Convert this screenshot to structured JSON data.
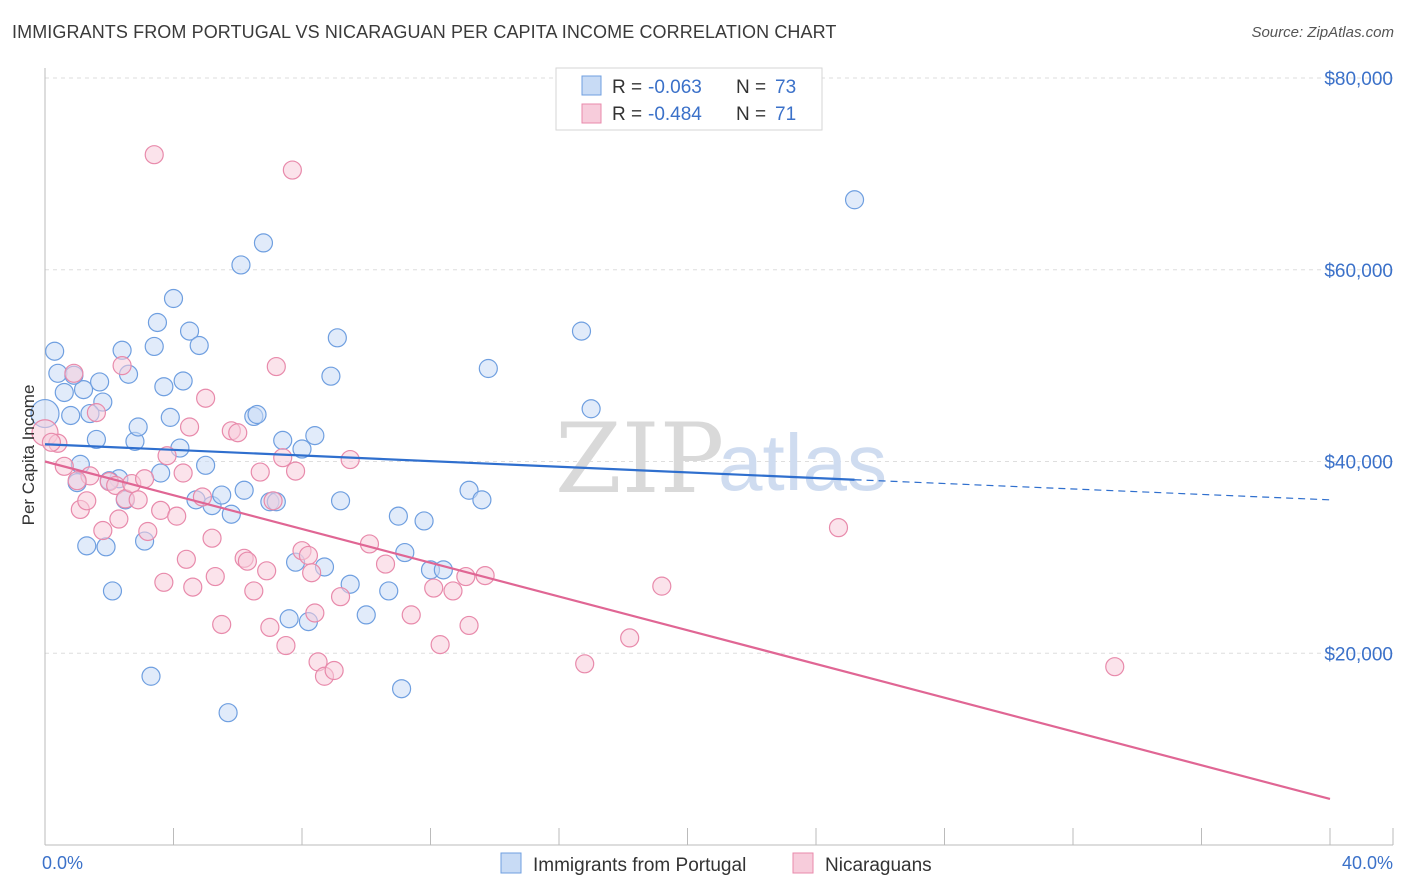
{
  "title": "IMMIGRANTS FROM PORTUGAL VS NICARAGUAN PER CAPITA INCOME CORRELATION CHART",
  "source": "Source: ZipAtlas.com",
  "watermark": {
    "zip": "ZIP",
    "atlas": "atlas"
  },
  "colors": {
    "blue": "#6f9fe0",
    "blue_fill": "#c8dbf5",
    "blue_line": "#2f6fce",
    "pink": "#e88aab",
    "pink_fill": "#f7ccdb",
    "pink_line": "#e06694",
    "accent_text": "#3b71c9"
  },
  "legend": {
    "rows": [
      {
        "r_label": "R = ",
        "r_value": "-0.063",
        "n_label": "N = ",
        "n_value": "73"
      },
      {
        "r_label": "R = ",
        "r_value": "-0.484",
        "n_label": "N = ",
        "n_value": "71"
      }
    ]
  },
  "chart_data": {
    "type": "scatter",
    "title": "IMMIGRANTS FROM PORTUGAL VS NICARAGUAN PER CAPITA INCOME CORRELATION CHART",
    "xlabel": "",
    "ylabel": "Per Capita Income",
    "xlim": [
      0,
      40
    ],
    "ylim": [
      0,
      80000
    ],
    "x_tick_labels": [
      "0.0%",
      "40.0%"
    ],
    "y_tick_labels": [
      "$20,000",
      "$40,000",
      "$60,000",
      "$80,000"
    ],
    "y_ticks": [
      20000,
      40000,
      60000,
      80000
    ],
    "grid": true,
    "legend_position": "top-center",
    "series": [
      {
        "name": "Immigrants from Portugal",
        "color": "#6f9fe0",
        "trend": {
          "x": [
            0,
            25.2
          ],
          "y": [
            41800,
            38100
          ],
          "dashed_to": [
            40,
            36000
          ]
        },
        "points": [
          [
            0.0,
            45000
          ],
          [
            0.3,
            51500
          ],
          [
            0.4,
            49200
          ],
          [
            0.6,
            47200
          ],
          [
            0.8,
            44800
          ],
          [
            1.0,
            37800
          ],
          [
            1.1,
            39700
          ],
          [
            1.2,
            47500
          ],
          [
            1.3,
            31200
          ],
          [
            1.6,
            42300
          ],
          [
            1.7,
            48300
          ],
          [
            1.8,
            46200
          ],
          [
            1.9,
            31100
          ],
          [
            2.1,
            26500
          ],
          [
            2.3,
            38200
          ],
          [
            2.4,
            51600
          ],
          [
            2.5,
            36000
          ],
          [
            2.6,
            49100
          ],
          [
            2.8,
            42100
          ],
          [
            2.9,
            43600
          ],
          [
            3.1,
            31700
          ],
          [
            3.3,
            17600
          ],
          [
            3.4,
            52000
          ],
          [
            3.5,
            54500
          ],
          [
            3.6,
            38800
          ],
          [
            3.7,
            47800
          ],
          [
            3.9,
            44600
          ],
          [
            4.0,
            57000
          ],
          [
            4.2,
            41400
          ],
          [
            4.3,
            48400
          ],
          [
            4.5,
            53600
          ],
          [
            4.7,
            36000
          ],
          [
            4.8,
            52100
          ],
          [
            5.0,
            39600
          ],
          [
            5.2,
            35400
          ],
          [
            5.7,
            13800
          ],
          [
            5.8,
            34500
          ],
          [
            6.1,
            60500
          ],
          [
            6.2,
            37000
          ],
          [
            6.5,
            44700
          ],
          [
            6.6,
            44900
          ],
          [
            6.8,
            62800
          ],
          [
            7.0,
            35800
          ],
          [
            7.2,
            35800
          ],
          [
            7.4,
            42200
          ],
          [
            7.6,
            23600
          ],
          [
            7.8,
            29500
          ],
          [
            8.0,
            41300
          ],
          [
            8.2,
            23300
          ],
          [
            8.4,
            42700
          ],
          [
            8.9,
            48900
          ],
          [
            9.1,
            52900
          ],
          [
            9.2,
            35900
          ],
          [
            9.5,
            27200
          ],
          [
            10.0,
            24000
          ],
          [
            10.7,
            26500
          ],
          [
            11.0,
            34300
          ],
          [
            11.1,
            16300
          ],
          [
            11.2,
            30500
          ],
          [
            11.8,
            33800
          ],
          [
            12.0,
            28700
          ],
          [
            12.4,
            28700
          ],
          [
            13.2,
            37000
          ],
          [
            13.6,
            36000
          ],
          [
            13.8,
            49700
          ],
          [
            16.7,
            53600
          ],
          [
            17.0,
            45500
          ],
          [
            25.2,
            67300
          ],
          [
            1.4,
            45000
          ],
          [
            0.9,
            49000
          ],
          [
            2.0,
            38000
          ],
          [
            5.5,
            36500
          ],
          [
            8.7,
            29000
          ]
        ]
      },
      {
        "name": "Nicaraguans",
        "color": "#e88aab",
        "trend": {
          "x": [
            0,
            40
          ],
          "y": [
            40000,
            4800
          ]
        },
        "points": [
          [
            0.0,
            43000
          ],
          [
            0.4,
            41900
          ],
          [
            0.6,
            39500
          ],
          [
            0.9,
            49200
          ],
          [
            1.1,
            35000
          ],
          [
            1.3,
            35900
          ],
          [
            1.4,
            38500
          ],
          [
            1.6,
            45100
          ],
          [
            1.8,
            32800
          ],
          [
            2.0,
            37900
          ],
          [
            2.2,
            37500
          ],
          [
            2.3,
            34000
          ],
          [
            2.4,
            50000
          ],
          [
            2.5,
            36100
          ],
          [
            2.7,
            37700
          ],
          [
            2.9,
            36000
          ],
          [
            3.1,
            38200
          ],
          [
            3.2,
            32700
          ],
          [
            3.4,
            72000
          ],
          [
            3.6,
            34900
          ],
          [
            3.7,
            27400
          ],
          [
            3.8,
            40600
          ],
          [
            4.1,
            34300
          ],
          [
            4.3,
            38800
          ],
          [
            4.4,
            29800
          ],
          [
            4.5,
            43600
          ],
          [
            4.6,
            26900
          ],
          [
            4.9,
            36300
          ],
          [
            5.0,
            46600
          ],
          [
            5.2,
            32000
          ],
          [
            5.3,
            28000
          ],
          [
            5.5,
            23000
          ],
          [
            5.8,
            43200
          ],
          [
            6.0,
            43000
          ],
          [
            6.2,
            29900
          ],
          [
            6.3,
            29600
          ],
          [
            6.5,
            26500
          ],
          [
            6.7,
            38900
          ],
          [
            6.9,
            28600
          ],
          [
            7.0,
            22700
          ],
          [
            7.1,
            35900
          ],
          [
            7.2,
            49900
          ],
          [
            7.4,
            40400
          ],
          [
            7.5,
            20800
          ],
          [
            7.7,
            70400
          ],
          [
            7.8,
            39000
          ],
          [
            8.0,
            30700
          ],
          [
            8.2,
            30200
          ],
          [
            8.3,
            28400
          ],
          [
            8.4,
            24200
          ],
          [
            8.5,
            19100
          ],
          [
            8.7,
            17600
          ],
          [
            9.0,
            18200
          ],
          [
            9.2,
            25900
          ],
          [
            9.5,
            40200
          ],
          [
            10.1,
            31400
          ],
          [
            10.6,
            29300
          ],
          [
            11.4,
            24000
          ],
          [
            12.1,
            26800
          ],
          [
            12.3,
            20900
          ],
          [
            12.7,
            26500
          ],
          [
            13.1,
            28000
          ],
          [
            13.2,
            22900
          ],
          [
            13.7,
            28100
          ],
          [
            16.8,
            18900
          ],
          [
            18.2,
            21600
          ],
          [
            19.2,
            27000
          ],
          [
            24.7,
            33100
          ],
          [
            33.3,
            18600
          ],
          [
            0.2,
            42000
          ],
          [
            1.0,
            38000
          ]
        ]
      }
    ]
  },
  "bottom_legend": [
    {
      "label": "Immigrants from Portugal"
    },
    {
      "label": "Nicaraguans"
    }
  ]
}
